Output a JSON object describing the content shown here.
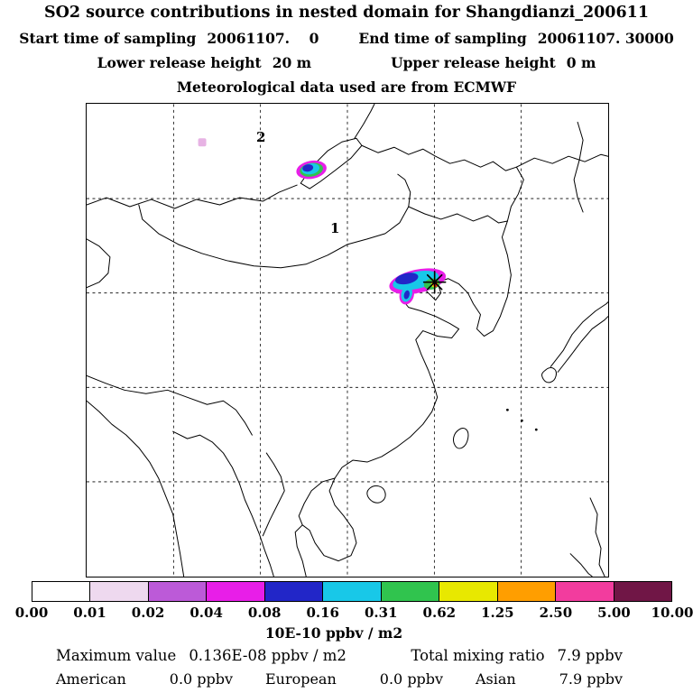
{
  "header": {
    "title": "SO2 source contributions in nested domain for Shangdianzi_200611",
    "sampling": {
      "start_label": "Start time of sampling",
      "start_value": "20061107.    0",
      "end_label": "End time of sampling",
      "end_value": "20061107. 30000"
    },
    "release": {
      "lower_label": "Lower release height",
      "lower_value": "20 m",
      "upper_label": "Upper release height",
      "upper_value": "0 m"
    },
    "met_line": "Meteorological data used are from ECMWF"
  },
  "map": {
    "domain_labels": [
      {
        "text": "2"
      },
      {
        "text": "1"
      }
    ]
  },
  "footer": {
    "max_label": "Maximum value",
    "max_value": "0.136E-08 ppbv / m2",
    "total_label": "Total mixing ratio",
    "total_value": "7.9 ppbv",
    "contributions": [
      {
        "region": "American",
        "value": "0.0 ppbv"
      },
      {
        "region": "European",
        "value": "0.0 ppbv"
      },
      {
        "region": "Asian",
        "value": "7.9 ppbv"
      }
    ]
  },
  "chart_data": {
    "type": "heatmap",
    "title": "SO2 source contributions in nested domain for Shangdianzi_200611",
    "geography": "East Asia nested model domain with coastlines and country borders",
    "receptor": "Shangdianzi",
    "sampling_start": "20061107. 0",
    "sampling_end": "20061107. 30000",
    "release_heights_m": {
      "lower": 20,
      "upper": 0
    },
    "met_data": "ECMWF",
    "domains": [
      "1",
      "2"
    ],
    "colorbar": {
      "units": "10E-10 ppbv / m2",
      "tick_labels": [
        "0.00",
        "0.01",
        "0.02",
        "0.04",
        "0.08",
        "0.16",
        "0.31",
        "0.62",
        "1.25",
        "2.50",
        "5.00",
        "10.00"
      ],
      "segment_colors": [
        "#ffffff",
        "#eed9ef",
        "#bc5ad8",
        "#e81ee8",
        "#2226c8",
        "#18c8e8",
        "#30c44e",
        "#e8e800",
        "#ff9e00",
        "#f23c9e",
        "#701646"
      ]
    },
    "maximum_value": "0.136E-08 ppbv / m2",
    "total_mixing_ratio_ppbv": 7.9,
    "source_contributions": [
      {
        "region": "American",
        "ppbv": 0.0
      },
      {
        "region": "European",
        "ppbv": 0.0
      },
      {
        "region": "Asian",
        "ppbv": 7.9
      }
    ],
    "hotspots": [
      {
        "name": "main-plume-at-receptor",
        "location": "near Bohai coast, marked with star",
        "relative_intensity": "high"
      },
      {
        "name": "secondary-plume",
        "location": "south end of Lake Baikal",
        "relative_intensity": "medium"
      },
      {
        "name": "faint-spot",
        "location": "northwest corner near domain 2 label",
        "relative_intensity": "low"
      }
    ]
  }
}
